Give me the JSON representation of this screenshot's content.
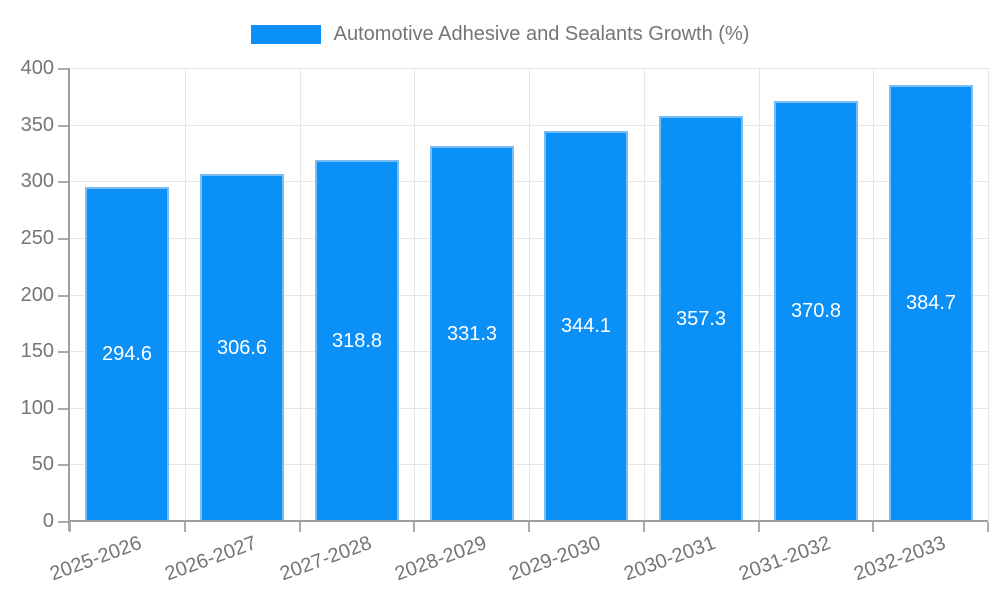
{
  "legend": {
    "label": "Automotive Adhesive and Sealants Growth (%)"
  },
  "chart_data": {
    "type": "bar",
    "title": "Automotive Adhesive and Sealants Growth (%)",
    "categories": [
      "2025-2026",
      "2026-2027",
      "2027-2028",
      "2028-2029",
      "2029-2030",
      "2030-2031",
      "2031-2032",
      "2032-2033"
    ],
    "values": [
      294.6,
      306.6,
      318.8,
      331.3,
      344.1,
      357.3,
      370.8,
      384.7
    ],
    "value_labels": [
      "294.6",
      "306.6",
      "318.8",
      "331.3",
      "344.1",
      "357.3",
      "370.8",
      "384.7"
    ],
    "xlabel": "",
    "ylabel": "",
    "ylim": [
      0,
      400
    ],
    "ytick_step": 50,
    "yticks": [
      "0",
      "50",
      "100",
      "150",
      "200",
      "250",
      "300",
      "350",
      "400"
    ],
    "grid": true,
    "legend_position": "top",
    "x_label_rotation_deg": -20,
    "colors": {
      "bar_fill": "#0a90f6",
      "bar_border": "#7abdf2",
      "value_label": "#ffffff",
      "axis": "#9e9e9e",
      "tick": "#ababab",
      "grid": "#e6e6e6",
      "text": "#757575",
      "background": "#ffffff"
    }
  }
}
